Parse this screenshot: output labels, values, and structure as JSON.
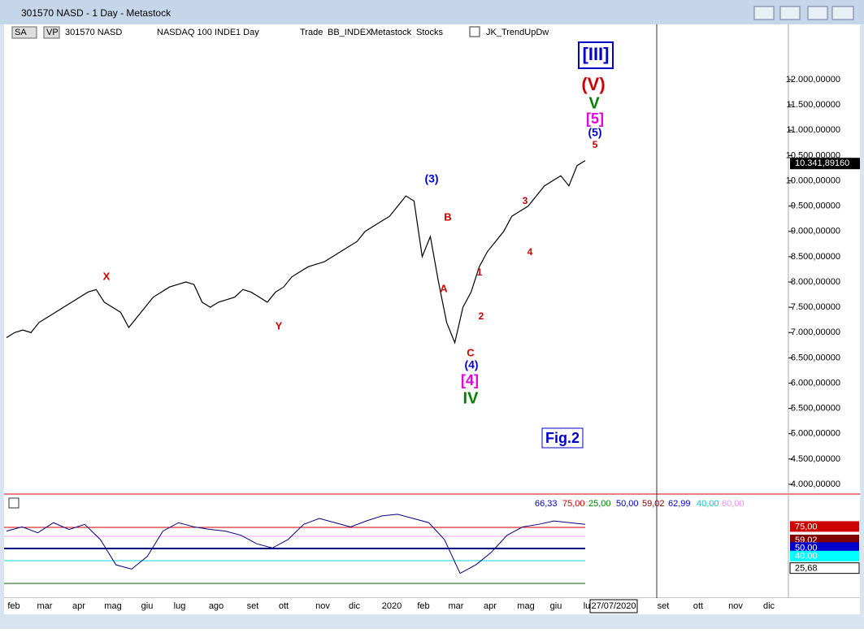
{
  "window": {
    "title": "301570 NASD - 1 Day - Metastock"
  },
  "toolbar": [
    "SA",
    "VP",
    "301570 NASD",
    "NASDAQ 100 INDE",
    "1 Day",
    "Trade",
    "BB_INDEX",
    "Metastock",
    "Stocks",
    "JK_TrendUpDw"
  ],
  "chart_data": {
    "type": "line",
    "color": "#000000",
    "values": [
      6900,
      7000,
      7050,
      7000,
      7200,
      7300,
      7400,
      7500,
      7600,
      7700,
      7800,
      7850,
      7600,
      7500,
      7400,
      7100,
      7300,
      7500,
      7700,
      7800,
      7900,
      7950,
      8000,
      7950,
      7600,
      7500,
      7600,
      7650,
      7700,
      7850,
      7800,
      7700,
      7600,
      7800,
      7900,
      8100,
      8200,
      8300,
      8350,
      8400,
      8500,
      8600,
      8700,
      8800,
      9000,
      9100,
      9200,
      9300,
      9500,
      9700,
      9600,
      8500,
      8900,
      8000,
      7200,
      6800,
      7500,
      7800,
      8300,
      8600,
      8800,
      9000,
      9300,
      9400,
      9500,
      9700,
      9900,
      10000,
      10100,
      9900,
      10300,
      10400
    ],
    "ylim": [
      3800,
      12800
    ],
    "yticks": [
      {
        "value": 12000,
        "label": "12.000,00000"
      },
      {
        "value": 11500,
        "label": "11.500,00000"
      },
      {
        "value": 11000,
        "label": "11.000,00000"
      },
      {
        "value": 10500,
        "label": "10.500,00000"
      },
      {
        "value": 10000,
        "label": "10.000,00000"
      },
      {
        "value": 9500,
        "label": "9.500,00000"
      },
      {
        "value": 9000,
        "label": "9.000,00000"
      },
      {
        "value": 8500,
        "label": "8.500,00000"
      },
      {
        "value": 8000,
        "label": "8.000,00000"
      },
      {
        "value": 7500,
        "label": "7.500,00000"
      },
      {
        "value": 7000,
        "label": "7.000,00000"
      },
      {
        "value": 6500,
        "label": "6.500,00000"
      },
      {
        "value": 6000,
        "label": "6.000,00000"
      },
      {
        "value": 5500,
        "label": "5.500,00000"
      },
      {
        "value": 5000,
        "label": "5.000,00000"
      },
      {
        "value": 4500,
        "label": "4.500,00000"
      },
      {
        "value": 4000,
        "label": "4.000,00000"
      }
    ],
    "last": {
      "value": 10341.8916,
      "label": "10.341,89160"
    },
    "waves": [
      "[III]",
      "(V)",
      "V",
      "[5]",
      "(5)",
      "5",
      "(3)",
      "B",
      "A",
      "1",
      "2",
      "3",
      "4",
      "X",
      "Y",
      "C",
      "(4)",
      "[4]",
      "IV"
    ],
    "annotation": "Fig.2",
    "months": [
      "feb",
      "mar",
      "apr",
      "mag",
      "giu",
      "lug",
      "ago",
      "set",
      "ott",
      "nov",
      "dic",
      "2020",
      "feb",
      "mar",
      "apr",
      "mag",
      "giu",
      "lu",
      "set",
      "ott",
      "nov",
      "dic"
    ],
    "date": "27/07/2020"
  },
  "indicator": {
    "values": [
      70,
      75,
      68,
      80,
      72,
      78,
      60,
      30,
      25,
      40,
      70,
      80,
      75,
      72,
      70,
      65,
      55,
      50,
      60,
      78,
      85,
      80,
      75,
      82,
      88,
      90,
      85,
      80,
      60,
      20,
      30,
      45,
      65,
      75,
      78,
      82,
      80,
      78
    ],
    "ylim": [
      8,
      112
    ],
    "legend": [
      "66,33",
      "75,00",
      "25,00",
      "50,00",
      "59,02",
      "62,99",
      "40,00",
      "60,00"
    ],
    "axis": [
      {
        "value": 75,
        "label": "75,00"
      },
      {
        "value": 59.02,
        "label": "59,02"
      },
      {
        "value": 50,
        "label": "50,00"
      },
      {
        "value": 40,
        "label": "40,00"
      },
      {
        "value": 25.68,
        "label": "25,68"
      }
    ]
  }
}
